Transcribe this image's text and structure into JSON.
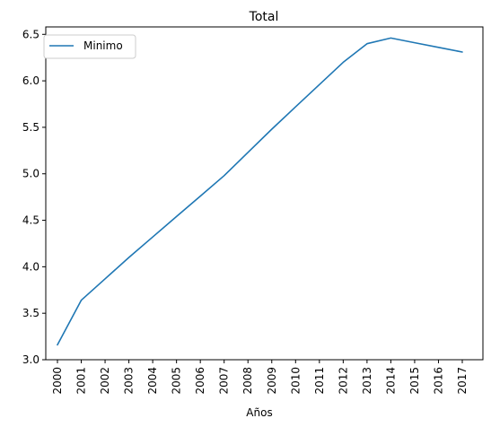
{
  "chart_data": {
    "type": "line",
    "title": "Total",
    "xlabel": "Años",
    "ylabel": "",
    "categories": [
      "2000",
      "2001",
      "2002",
      "2003",
      "2004",
      "2005",
      "2006",
      "2007",
      "2008",
      "2009",
      "2010",
      "2011",
      "2012",
      "2013",
      "2014",
      "2015",
      "2016",
      "2017"
    ],
    "series": [
      {
        "name": "Minimo",
        "color": "#1f77b4",
        "values": [
          3.16,
          3.64,
          3.87,
          4.1,
          4.32,
          4.54,
          4.76,
          4.98,
          5.23,
          5.48,
          5.72,
          5.96,
          6.2,
          6.4,
          6.46,
          6.41,
          6.36,
          6.31
        ]
      }
    ],
    "ylim": [
      3.0,
      6.58
    ],
    "yticks": [
      "3.0",
      "3.5",
      "4.0",
      "4.5",
      "5.0",
      "5.5",
      "6.0",
      "6.5"
    ],
    "grid": false,
    "legend_position": "upper-left"
  }
}
